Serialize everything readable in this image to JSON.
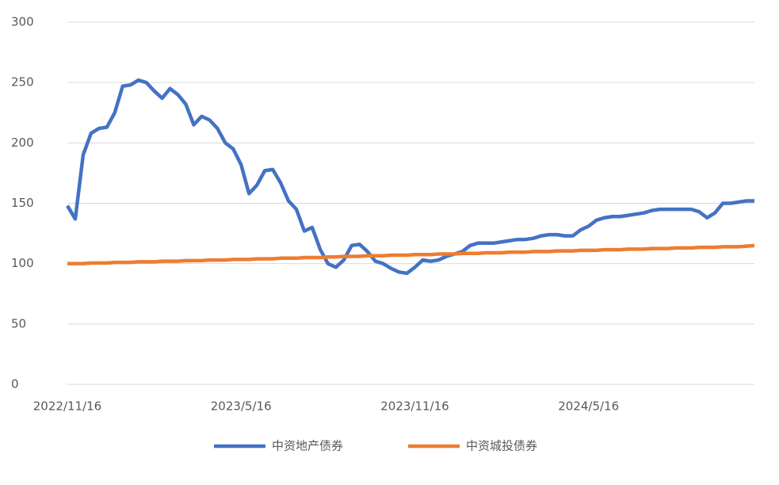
{
  "chart_data": {
    "type": "line",
    "categories": [
      "2022/11/16",
      null,
      null,
      null,
      null,
      null,
      null,
      null,
      null,
      null,
      null,
      null,
      null,
      null,
      null,
      null,
      null,
      null,
      null,
      null,
      null,
      null,
      "2023/5/16",
      null,
      null,
      null,
      null,
      null,
      null,
      null,
      null,
      null,
      null,
      null,
      null,
      null,
      null,
      null,
      null,
      null,
      null,
      null,
      null,
      null,
      "2023/11/16",
      null,
      null,
      null,
      null,
      null,
      null,
      null,
      null,
      null,
      null,
      null,
      null,
      null,
      null,
      null,
      null,
      null,
      null,
      null,
      null,
      null,
      "2024/5/16",
      null,
      null,
      null,
      null,
      null,
      null,
      null,
      null,
      null,
      null,
      null,
      null,
      null,
      null,
      null,
      null,
      null,
      null,
      null,
      null,
      null
    ],
    "series": [
      {
        "name": "中资地产债券",
        "color": "#4472c4",
        "values": [
          148,
          137,
          190,
          208,
          212,
          213,
          225,
          247,
          248,
          252,
          250,
          243,
          237,
          245,
          240,
          232,
          215,
          222,
          219,
          212,
          200,
          195,
          182,
          158,
          165,
          177,
          178,
          167,
          152,
          145,
          127,
          130,
          112,
          100,
          97,
          103,
          115,
          116,
          110,
          102,
          100,
          96,
          93,
          92,
          97,
          103,
          102,
          103,
          106,
          108,
          110,
          115,
          117,
          117,
          117,
          118,
          119,
          120,
          120,
          121,
          123,
          124,
          124,
          123,
          123,
          128,
          131,
          136,
          138,
          139,
          139,
          140,
          141,
          142,
          144,
          145,
          145,
          145,
          145,
          145,
          143,
          138,
          142,
          150,
          150,
          151,
          152,
          152
        ]
      },
      {
        "name": "中资城投债券",
        "color": "#ed7d31",
        "values": [
          100,
          100,
          100,
          100.5,
          100.5,
          100.5,
          101,
          101,
          101,
          101.5,
          101.5,
          101.5,
          102,
          102,
          102,
          102.5,
          102.5,
          102.5,
          103,
          103,
          103,
          103.5,
          103.5,
          103.5,
          104,
          104,
          104,
          104.5,
          104.5,
          104.5,
          105,
          105,
          105,
          105.5,
          105.5,
          106,
          106,
          106,
          106.5,
          106.5,
          106.5,
          107,
          107,
          107,
          107.5,
          107.5,
          107.5,
          108,
          108,
          108,
          108.5,
          108.5,
          108.5,
          109,
          109,
          109,
          109.5,
          109.5,
          109.5,
          110,
          110,
          110,
          110.5,
          110.5,
          110.5,
          111,
          111,
          111,
          111.5,
          111.5,
          111.5,
          112,
          112,
          112,
          112.5,
          112.5,
          112.5,
          113,
          113,
          113,
          113.5,
          113.5,
          113.5,
          114,
          114,
          114,
          114.5,
          115
        ]
      }
    ],
    "ylim": [
      0,
      300
    ],
    "yticks": [
      0,
      50,
      100,
      150,
      200,
      250,
      300
    ],
    "grid": true,
    "legend": "bottom"
  }
}
